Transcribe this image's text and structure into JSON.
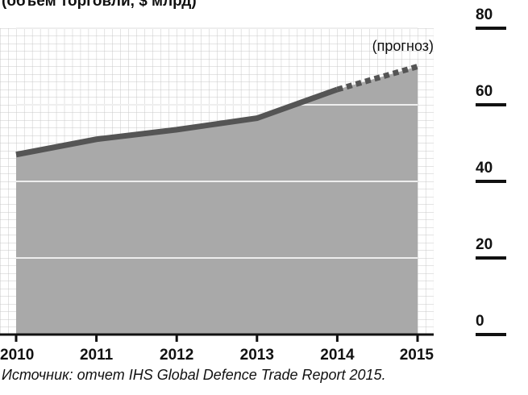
{
  "chart_data": {
    "type": "line",
    "subtitle": "(объем торговли, $ млрд)",
    "annotation": "(прогноз)",
    "source": "Источник: отчет IHS Global Defence Trade Report 2015.",
    "x": [
      2010,
      2011,
      2012,
      2013,
      2014,
      2015
    ],
    "values": [
      47,
      51,
      53.5,
      56.5,
      64,
      70
    ],
    "forecast_start": 4,
    "color": "#555555",
    "area_color": "#a9a9a9",
    "xlim": [
      2010,
      2015
    ],
    "ylim": [
      0,
      80
    ],
    "yticks": [
      0,
      20,
      40,
      60,
      80
    ],
    "grid": true
  }
}
